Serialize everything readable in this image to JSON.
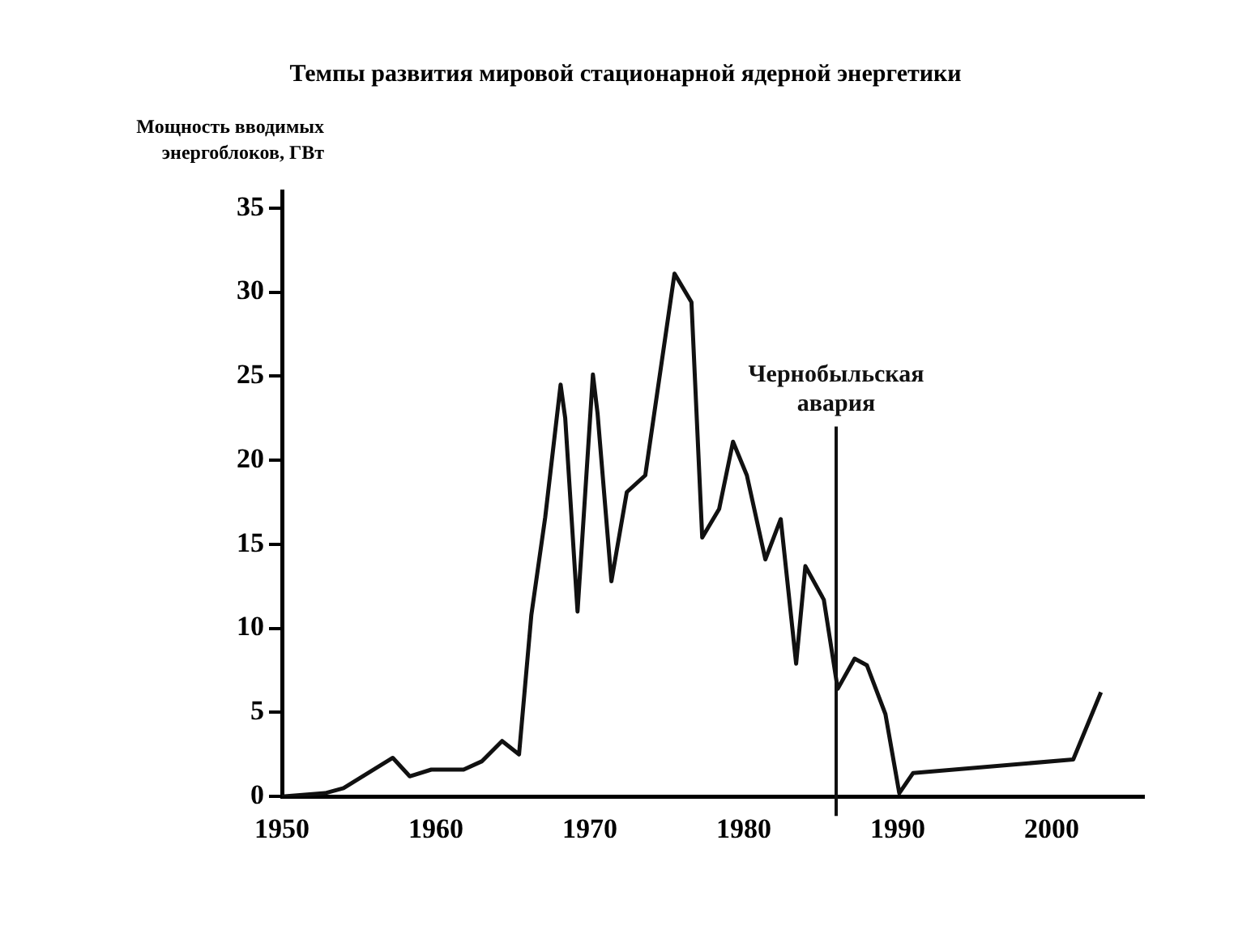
{
  "chart_data": {
    "type": "line",
    "title": "Темпы развития мировой стационарной ядерной энергетики",
    "ylabel": "Мощность вводимых энергоблоков, ГВт",
    "x": [
      1950,
      1952.8,
      1954,
      1957.2,
      1958.3,
      1959.7,
      1961.8,
      1963,
      1964.3,
      1965.4,
      1966.2,
      1967.1,
      1968.1,
      1968.4,
      1969.2,
      1970.2,
      1970.5,
      1971.4,
      1972.4,
      1973.6,
      1975.5,
      1976.6,
      1977.3,
      1978.4,
      1979.3,
      1980.2,
      1981.4,
      1982.4,
      1983.4,
      1984,
      1985.2,
      1986.1,
      1987.2,
      1988,
      1989.2,
      1990.1,
      1991,
      2001.4,
      2003.2
    ],
    "series": [
      {
        "color": "#111111",
        "values": [
          0,
          0.2,
          0.5,
          2.3,
          1.2,
          1.6,
          1.6,
          2.1,
          3.3,
          2.5,
          10.8,
          16.6,
          24.5,
          22.5,
          11,
          25.1,
          22.8,
          12.8,
          18.1,
          19.1,
          31.1,
          29.4,
          15.4,
          17.1,
          21.1,
          19.1,
          14.1,
          16.5,
          7.9,
          13.7,
          11.7,
          6.4,
          8.2,
          7.8,
          4.9,
          0.2,
          1.4,
          2.2,
          6.2
        ]
      }
    ],
    "xlim": [
      1950,
      2006
    ],
    "xticks": [
      1950,
      1960,
      1970,
      1980,
      1990,
      2000
    ],
    "ylim": [
      0,
      36
    ],
    "yticks": [
      0,
      5,
      10,
      15,
      20,
      25,
      30,
      35
    ],
    "ref_lines": [
      {
        "axis": "x",
        "value": 1986,
        "label": "Чернобыльская авария",
        "color": "#111111"
      }
    ],
    "grid": false,
    "legend": false,
    "marker": "none",
    "line_style": "solid"
  }
}
